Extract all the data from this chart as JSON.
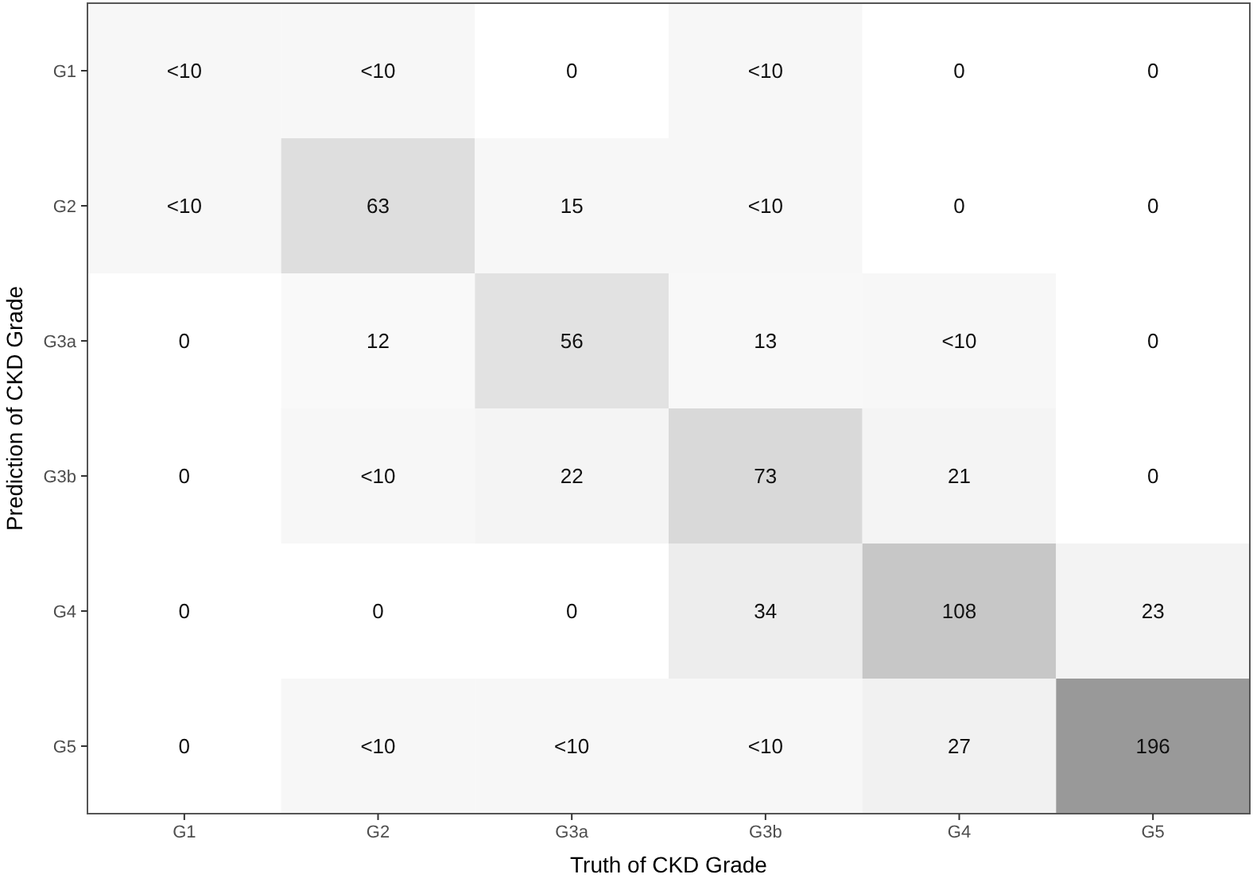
{
  "chart_data": {
    "type": "heatmap",
    "xlabel": "Truth of CKD Grade",
    "ylabel": "Prediction of CKD Grade",
    "categories": [
      "G1",
      "G2",
      "G3a",
      "G3b",
      "G4",
      "G5"
    ],
    "y_categories": [
      "G1",
      "G2",
      "G3a",
      "G3b",
      "G4",
      "G5"
    ],
    "cells": [
      [
        null,
        null,
        0,
        null,
        0,
        0
      ],
      [
        null,
        63,
        15,
        null,
        0,
        0
      ],
      [
        0,
        12,
        56,
        13,
        null,
        0
      ],
      [
        0,
        null,
        22,
        73,
        21,
        0
      ],
      [
        0,
        0,
        0,
        34,
        108,
        23
      ],
      [
        0,
        null,
        null,
        null,
        27,
        196
      ]
    ],
    "cell_labels": [
      [
        "<10",
        "<10",
        "0",
        "<10",
        "0",
        "0"
      ],
      [
        "<10",
        "63",
        "15",
        "<10",
        "0",
        "0"
      ],
      [
        "0",
        "12",
        "56",
        "13",
        "<10",
        "0"
      ],
      [
        "0",
        "<10",
        "22",
        "73",
        "21",
        "0"
      ],
      [
        "0",
        "0",
        "0",
        "34",
        "108",
        "23"
      ],
      [
        "0",
        "<10",
        "<10",
        "<10",
        "27",
        "196"
      ]
    ],
    "grid": false
  }
}
